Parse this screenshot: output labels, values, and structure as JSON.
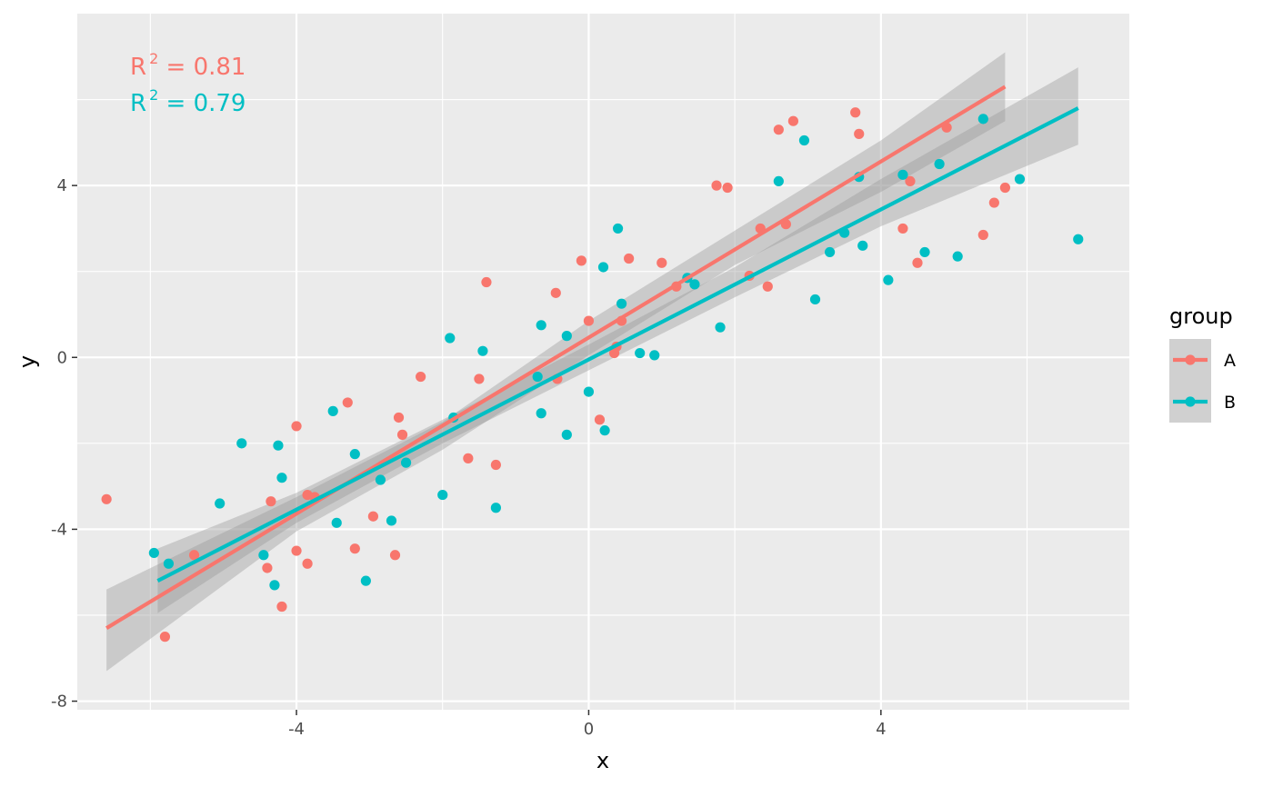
{
  "chart_data": {
    "type": "scatter",
    "xlabel": "x",
    "ylabel": "y",
    "xlim": [
      -7.0,
      7.4
    ],
    "ylim": [
      -8.2,
      8.0
    ],
    "x_ticks": [
      -4,
      0,
      4
    ],
    "x_tick_labels": [
      "-4",
      "0",
      "4"
    ],
    "y_ticks": [
      -8,
      -4,
      0,
      4
    ],
    "y_tick_labels": [
      "-8",
      "-4",
      "0",
      "4"
    ],
    "grid": true,
    "legend": {
      "title": "group",
      "position": "right",
      "entries": [
        "A",
        "B"
      ]
    },
    "colors": {
      "A": "#F8766D",
      "B": "#00BFC4",
      "panel": "#EBEBEB",
      "band": "#999999"
    },
    "annotations": [
      {
        "series": "A",
        "prefix": "R",
        "sup": "2",
        "suffix": " = 0.81"
      },
      {
        "series": "B",
        "prefix": "R",
        "sup": "2",
        "suffix": " = 0.79"
      }
    ],
    "series": [
      {
        "name": "A",
        "fit": {
          "x": [
            -6.6,
            5.7
          ],
          "y": [
            -6.3,
            6.3
          ]
        },
        "ci": {
          "x": [
            -6.6,
            -4.0,
            -2.0,
            0.0,
            2.0,
            4.0,
            5.7
          ],
          "upper": [
            -5.4,
            -3.25,
            -1.5,
            0.85,
            2.95,
            5.05,
            7.1
          ],
          "lower": [
            -7.3,
            -4.05,
            -2.15,
            0.05,
            2.15,
            3.85,
            5.5
          ]
        },
        "points": [
          [
            -6.6,
            -3.3
          ],
          [
            -5.8,
            -6.5
          ],
          [
            -5.4,
            -4.6
          ],
          [
            -4.4,
            -4.9
          ],
          [
            -4.35,
            -3.35
          ],
          [
            -4.2,
            -5.8
          ],
          [
            -4.0,
            -1.6
          ],
          [
            -4.0,
            -4.5
          ],
          [
            -3.85,
            -4.8
          ],
          [
            -3.85,
            -3.2
          ],
          [
            -3.75,
            -3.25
          ],
          [
            -3.3,
            -1.05
          ],
          [
            -3.2,
            -4.45
          ],
          [
            -2.95,
            -3.7
          ],
          [
            -2.65,
            -4.6
          ],
          [
            -2.6,
            -1.4
          ],
          [
            -2.55,
            -1.8
          ],
          [
            -2.3,
            -0.45
          ],
          [
            -1.65,
            -2.35
          ],
          [
            -1.5,
            -0.5
          ],
          [
            -1.4,
            1.75
          ],
          [
            -1.27,
            -2.5
          ],
          [
            -0.45,
            1.5
          ],
          [
            -0.43,
            -0.5
          ],
          [
            -0.1,
            2.25
          ],
          [
            0.0,
            0.85
          ],
          [
            0.15,
            -1.45
          ],
          [
            0.35,
            0.1
          ],
          [
            0.38,
            0.25
          ],
          [
            0.45,
            0.85
          ],
          [
            0.55,
            2.3
          ],
          [
            1.0,
            2.2
          ],
          [
            1.2,
            1.65
          ],
          [
            1.75,
            4.0
          ],
          [
            1.9,
            3.95
          ],
          [
            2.2,
            1.9
          ],
          [
            2.35,
            3.0
          ],
          [
            2.45,
            1.65
          ],
          [
            2.6,
            5.3
          ],
          [
            2.7,
            3.1
          ],
          [
            2.8,
            5.5
          ],
          [
            3.65,
            5.7
          ],
          [
            3.7,
            5.2
          ],
          [
            4.3,
            3.0
          ],
          [
            4.4,
            4.1
          ],
          [
            4.5,
            2.2
          ],
          [
            4.9,
            5.35
          ],
          [
            5.4,
            2.85
          ],
          [
            5.55,
            3.6
          ],
          [
            5.7,
            3.95
          ]
        ]
      },
      {
        "name": "B",
        "fit": {
          "x": [
            -5.9,
            6.7
          ],
          "y": [
            -5.2,
            5.8
          ]
        },
        "ci": {
          "x": [
            -5.9,
            -4.0,
            -2.0,
            0.0,
            2.0,
            4.0,
            6.7
          ],
          "upper": [
            -4.45,
            -3.15,
            -1.45,
            0.3,
            2.1,
            4.15,
            6.75
          ],
          "lower": [
            -5.95,
            -3.85,
            -2.0,
            -0.3,
            1.4,
            3.05,
            4.95
          ]
        },
        "points": [
          [
            -5.95,
            -4.55
          ],
          [
            -5.75,
            -4.8
          ],
          [
            -5.05,
            -3.4
          ],
          [
            -4.75,
            -2.0
          ],
          [
            -4.45,
            -4.6
          ],
          [
            -4.3,
            -5.3
          ],
          [
            -4.25,
            -2.05
          ],
          [
            -4.2,
            -2.8
          ],
          [
            -3.5,
            -1.25
          ],
          [
            -3.45,
            -3.85
          ],
          [
            -3.2,
            -2.25
          ],
          [
            -3.05,
            -5.2
          ],
          [
            -2.85,
            -2.85
          ],
          [
            -2.7,
            -3.8
          ],
          [
            -2.5,
            -2.45
          ],
          [
            -2.0,
            -3.2
          ],
          [
            -1.9,
            0.45
          ],
          [
            -1.85,
            -1.4
          ],
          [
            -1.45,
            0.15
          ],
          [
            -1.27,
            -3.5
          ],
          [
            -0.7,
            -0.45
          ],
          [
            -0.65,
            0.75
          ],
          [
            -0.65,
            -1.3
          ],
          [
            -0.3,
            -1.8
          ],
          [
            -0.3,
            0.5
          ],
          [
            0.0,
            -0.8
          ],
          [
            0.2,
            2.1
          ],
          [
            0.22,
            -1.7
          ],
          [
            0.4,
            3.0
          ],
          [
            0.45,
            1.25
          ],
          [
            0.7,
            0.1
          ],
          [
            0.9,
            0.05
          ],
          [
            1.35,
            1.85
          ],
          [
            1.45,
            1.7
          ],
          [
            1.8,
            0.7
          ],
          [
            2.6,
            4.1
          ],
          [
            2.95,
            5.05
          ],
          [
            3.1,
            1.35
          ],
          [
            3.3,
            2.45
          ],
          [
            3.5,
            2.9
          ],
          [
            3.7,
            4.2
          ],
          [
            3.75,
            2.6
          ],
          [
            4.1,
            1.8
          ],
          [
            4.3,
            4.25
          ],
          [
            4.6,
            2.45
          ],
          [
            4.8,
            4.5
          ],
          [
            5.05,
            2.35
          ],
          [
            5.4,
            5.55
          ],
          [
            5.9,
            4.15
          ],
          [
            6.7,
            2.75
          ]
        ]
      }
    ]
  }
}
